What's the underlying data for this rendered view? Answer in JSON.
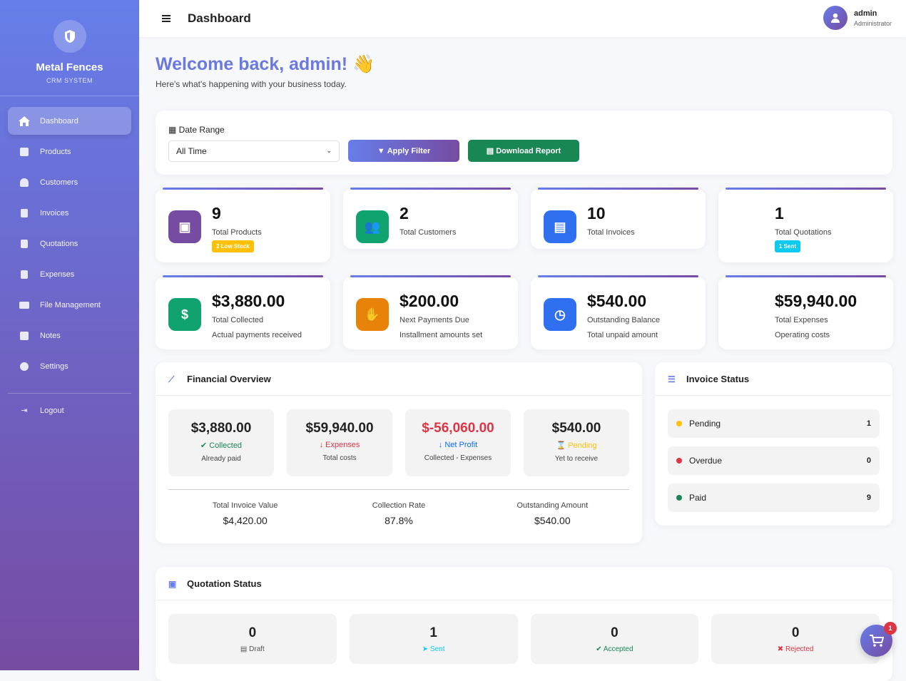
{
  "sidebar": {
    "brand": "Metal Fences",
    "subtitle": "CRM SYSTEM",
    "items": [
      {
        "label": "Dashboard",
        "icon": "home-icon"
      },
      {
        "label": "Products",
        "icon": "box-icon"
      },
      {
        "label": "Customers",
        "icon": "users-icon"
      },
      {
        "label": "Invoices",
        "icon": "file-invoice-icon"
      },
      {
        "label": "Quotations",
        "icon": "file-icon"
      },
      {
        "label": "Expenses",
        "icon": "receipt-icon"
      },
      {
        "label": "File Management",
        "icon": "folder-icon"
      },
      {
        "label": "Notes",
        "icon": "sticky-note-icon"
      },
      {
        "label": "Settings",
        "icon": "gear-icon"
      }
    ],
    "logout": "Logout"
  },
  "header": {
    "title": "Dashboard",
    "user": "admin",
    "role": "Administrator"
  },
  "welcome": {
    "title": "Welcome back, admin! 👋",
    "subtitle": "Here's what's happening with your business today."
  },
  "filter": {
    "label": "Date Range",
    "selected": "All Time",
    "apply": "Apply Filter",
    "download": "Download Report"
  },
  "stats": [
    {
      "value": "9",
      "label": "Total Products",
      "badge": "2 Low Stock",
      "color": "#764ba2"
    },
    {
      "value": "2",
      "label": "Total Customers",
      "color": "#11a36f"
    },
    {
      "value": "10",
      "label": "Total Invoices",
      "color": "#2f6ff0"
    },
    {
      "value": "1",
      "label": "Total Quotations",
      "badge": "1 Sent"
    },
    {
      "value": "$3,880.00",
      "label": "Total Collected",
      "sub": "Actual payments received",
      "color": "#11a36f"
    },
    {
      "value": "$200.00",
      "label": "Next Payments Due",
      "sub": "Installment amounts set",
      "color": "#e8830a"
    },
    {
      "value": "$540.00",
      "label": "Outstanding Balance",
      "sub": "Total unpaid amount",
      "color": "#2f6ff0"
    },
    {
      "value": "$59,940.00",
      "label": "Total Expenses",
      "sub": "Operating costs"
    }
  ],
  "financial": {
    "title": "Financial Overview",
    "boxes": [
      {
        "value": "$3,880.00",
        "label": "✔ Collected",
        "sub": "Already paid",
        "color": "#198754"
      },
      {
        "value": "$59,940.00",
        "label": "↓ Expenses",
        "sub": "Total costs",
        "color": "#dc3545"
      },
      {
        "value": "$-56,060.00",
        "label": "↓ Net Profit",
        "sub": "Collected - Expenses",
        "color": "#0d6efd"
      },
      {
        "value": "$540.00",
        "label": "⌛ Pending",
        "sub": "Yet to receive",
        "color": "#ffc107"
      }
    ],
    "totals": [
      {
        "label": "Total Invoice Value",
        "value": "$4,420.00"
      },
      {
        "label": "Collection Rate",
        "value": "87.8%"
      },
      {
        "label": "Outstanding Amount",
        "value": "$540.00"
      }
    ]
  },
  "invoice_status": {
    "title": "Invoice Status",
    "rows": [
      {
        "label": "Pending",
        "count": "1",
        "color": "#ffc107"
      },
      {
        "label": "Overdue",
        "count": "0",
        "color": "#dc3545"
      },
      {
        "label": "Paid",
        "count": "9",
        "color": "#198754"
      }
    ]
  },
  "quotation_status": {
    "title": "Quotation Status",
    "boxes": [
      {
        "value": "0",
        "label": "Draft",
        "color": "#555"
      },
      {
        "value": "1",
        "label": "Sent",
        "color": "#0dcaf0"
      },
      {
        "value": "0",
        "label": "Accepted",
        "color": "#198754"
      },
      {
        "value": "0",
        "label": "Rejected",
        "color": "#dc3545"
      }
    ]
  },
  "cart": {
    "count": "1"
  }
}
